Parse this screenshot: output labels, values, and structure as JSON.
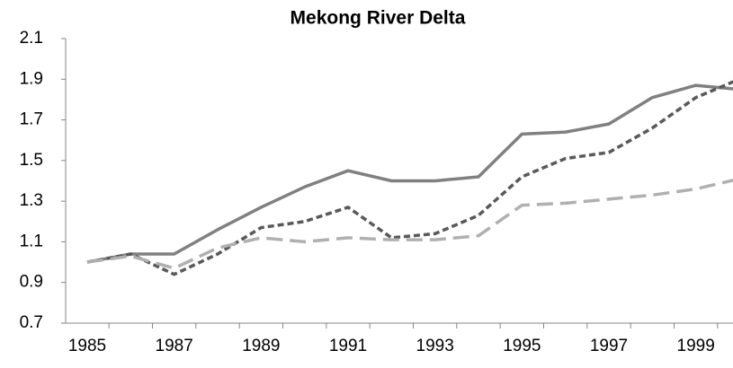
{
  "chart_data": {
    "type": "line",
    "title": "Mekong River Delta",
    "categories": [
      1985,
      null,
      1987,
      null,
      1989,
      null,
      1991,
      null,
      1993,
      null,
      1995,
      null,
      1997,
      null,
      1999,
      null
    ],
    "series": [
      {
        "color": "#808080",
        "dash": "solid",
        "values": [
          1.0,
          1.04,
          1.04,
          1.16,
          1.27,
          1.37,
          1.45,
          1.4,
          1.4,
          1.42,
          1.63,
          1.64,
          1.68,
          1.81,
          1.87,
          1.85
        ]
      },
      {
        "color": "#595959",
        "dash": "short",
        "values": [
          1.0,
          1.04,
          0.94,
          1.04,
          1.17,
          1.2,
          1.27,
          1.12,
          1.14,
          1.23,
          1.42,
          1.51,
          1.54,
          1.66,
          1.81,
          1.9
        ]
      },
      {
        "color": "#b0b0b0",
        "dash": "long",
        "values": [
          1.0,
          1.03,
          0.97,
          1.07,
          1.12,
          1.1,
          1.12,
          1.11,
          1.11,
          1.13,
          1.28,
          1.29,
          1.31,
          1.33,
          1.36,
          1.41
        ]
      }
    ],
    "ylim": [
      0.7,
      2.1
    ],
    "yticks": [
      0.7,
      0.9,
      1.1,
      1.3,
      1.5,
      1.7,
      1.9,
      2.1
    ],
    "grid": false
  }
}
